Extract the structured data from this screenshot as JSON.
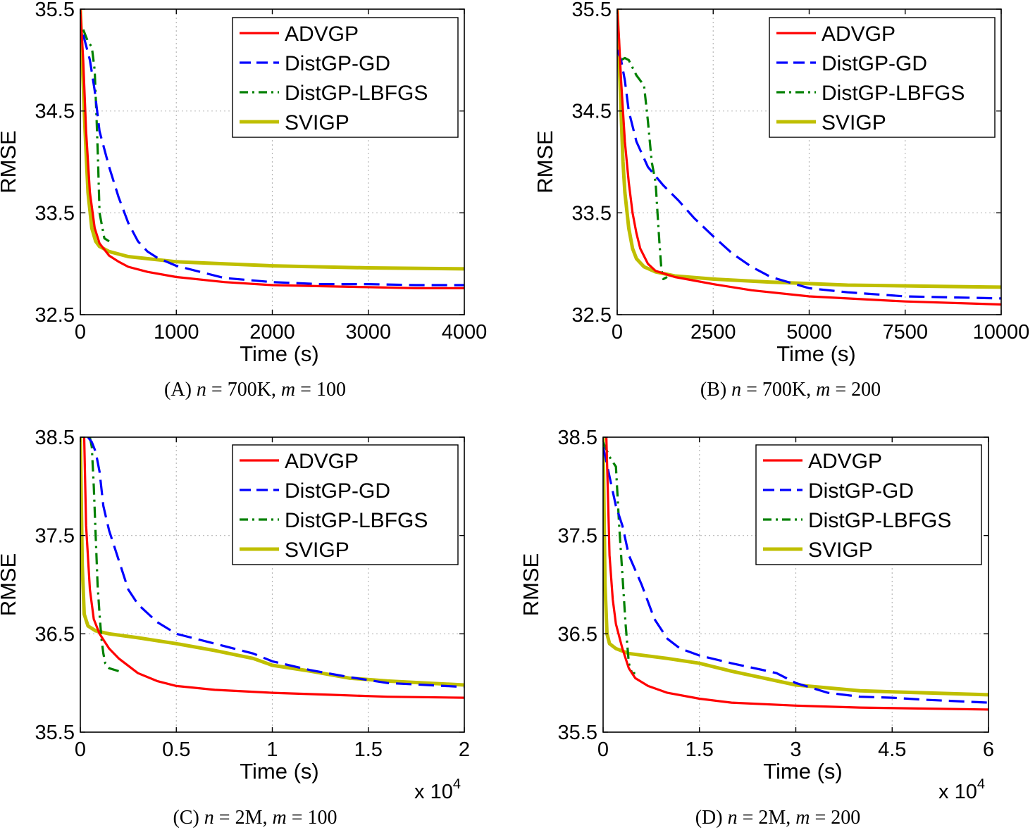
{
  "chart_data": [
    {
      "type": "line",
      "panel_label": "(A)",
      "caption_parts": [
        "n",
        "700K",
        "m",
        "100"
      ],
      "xlabel": "Time (s)",
      "ylabel": "RMSE",
      "xlim": [
        0,
        4000
      ],
      "ylim": [
        32.5,
        35.5
      ],
      "xticks": [
        0,
        1000,
        2000,
        3000,
        4000
      ],
      "xtick_labels": [
        "0",
        "1000",
        "2000",
        "3000",
        "4000"
      ],
      "yticks": [
        32.5,
        33.5,
        34.5,
        35.5
      ],
      "ytick_labels": [
        "32.5",
        "33.5",
        "34.5",
        "35.5"
      ],
      "x_multiplier": "",
      "grid": true,
      "legend_position": "top-right",
      "series": [
        {
          "name": "ADVGP",
          "style": "solid",
          "x": [
            0,
            30,
            60,
            100,
            150,
            200,
            300,
            400,
            500,
            700,
            1000,
            1500,
            2000,
            2500,
            3000,
            3500,
            4000
          ],
          "y": [
            35.5,
            35.0,
            34.3,
            33.7,
            33.35,
            33.2,
            33.08,
            33.02,
            32.97,
            32.92,
            32.87,
            32.82,
            32.79,
            32.78,
            32.77,
            32.76,
            32.76
          ]
        },
        {
          "name": "DistGP-GD",
          "style": "dashed",
          "x": [
            30,
            100,
            150,
            200,
            300,
            400,
            500,
            600,
            700,
            800,
            1000,
            1500,
            2000,
            2500,
            3000,
            3500,
            4000
          ],
          "y": [
            35.25,
            35.0,
            34.7,
            34.3,
            33.95,
            33.65,
            33.4,
            33.22,
            33.12,
            33.06,
            32.98,
            32.86,
            32.82,
            32.8,
            32.8,
            32.79,
            32.79
          ]
        },
        {
          "name": "DistGP-LBFGS",
          "style": "dashdot",
          "x": [
            30,
            80,
            120,
            150,
            170,
            185,
            200,
            250,
            300
          ],
          "y": [
            35.3,
            35.18,
            35.13,
            34.9,
            34.4,
            34.0,
            33.5,
            33.25,
            33.22
          ]
        },
        {
          "name": "SVIGP",
          "style": "solid",
          "x": [
            0,
            20,
            50,
            80,
            120,
            160,
            200,
            300,
            500,
            1000,
            1500,
            2000,
            3000,
            4000
          ],
          "y": [
            35.5,
            35.0,
            34.3,
            33.7,
            33.35,
            33.22,
            33.17,
            33.12,
            33.07,
            33.02,
            33.0,
            32.98,
            32.96,
            32.95
          ]
        }
      ]
    },
    {
      "type": "line",
      "panel_label": "(B)",
      "caption_parts": [
        "n",
        "700K",
        "m",
        "200"
      ],
      "xlabel": "Time (s)",
      "ylabel": "RMSE",
      "xlim": [
        0,
        10000
      ],
      "ylim": [
        32.5,
        35.5
      ],
      "xticks": [
        0,
        2500,
        5000,
        7500,
        10000
      ],
      "xtick_labels": [
        "0",
        "2500",
        "5000",
        "7500",
        "10000"
      ],
      "yticks": [
        32.5,
        33.5,
        34.5,
        35.5
      ],
      "ytick_labels": [
        "32.5",
        "33.5",
        "34.5",
        "35.5"
      ],
      "x_multiplier": "",
      "grid": true,
      "legend_position": "top-right",
      "series": [
        {
          "name": "ADVGP",
          "style": "solid",
          "x": [
            0,
            50,
            100,
            200,
            300,
            400,
            500,
            600,
            800,
            1000,
            1500,
            2500,
            3500,
            5000,
            7500,
            10000
          ],
          "y": [
            35.5,
            35.2,
            34.8,
            34.2,
            33.8,
            33.5,
            33.3,
            33.15,
            33.0,
            32.93,
            32.87,
            32.8,
            32.74,
            32.68,
            32.63,
            32.6
          ]
        },
        {
          "name": "DistGP-GD",
          "style": "dashed",
          "x": [
            0,
            100,
            200,
            300,
            500,
            800,
            1200,
            1600,
            2000,
            2500,
            3000,
            3500,
            4000,
            5000,
            6000,
            7500,
            10000
          ],
          "y": [
            35.1,
            35.0,
            34.8,
            34.5,
            34.2,
            33.95,
            33.77,
            33.62,
            33.45,
            33.27,
            33.1,
            32.97,
            32.87,
            32.76,
            32.72,
            32.68,
            32.66
          ]
        },
        {
          "name": "DistGP-LBFGS",
          "style": "dashdot",
          "x": [
            100,
            200,
            300,
            500,
            700,
            800,
            900,
            1000,
            1050,
            1100,
            1150,
            1200,
            1300
          ],
          "y": [
            35.0,
            35.02,
            35.0,
            34.85,
            34.75,
            34.4,
            34.0,
            33.8,
            33.5,
            33.2,
            32.95,
            32.85,
            32.87
          ]
        },
        {
          "name": "SVIGP",
          "style": "solid",
          "x": [
            0,
            50,
            100,
            150,
            200,
            300,
            400,
            500,
            700,
            1000,
            1500,
            2500,
            4000,
            6000,
            8000,
            10000
          ],
          "y": [
            35.5,
            35.0,
            34.5,
            34.0,
            33.7,
            33.35,
            33.15,
            33.05,
            32.97,
            32.92,
            32.88,
            32.85,
            32.82,
            32.79,
            32.78,
            32.77
          ]
        }
      ]
    },
    {
      "type": "line",
      "panel_label": "(C)",
      "caption_parts": [
        "n",
        "2M",
        "m",
        "100"
      ],
      "xlabel": "Time (s)",
      "ylabel": "RMSE",
      "xlim": [
        0,
        2
      ],
      "ylim": [
        35.5,
        38.5
      ],
      "xticks": [
        0,
        0.5,
        1,
        1.5,
        2
      ],
      "xtick_labels": [
        "0",
        "0.5",
        "1",
        "1.5",
        "2"
      ],
      "yticks": [
        35.5,
        36.5,
        37.5,
        38.5
      ],
      "ytick_labels": [
        "35.5",
        "36.5",
        "37.5",
        "38.5"
      ],
      "x_multiplier": "x 10",
      "x_multiplier_exp": "4",
      "grid": true,
      "legend_position": "top-right",
      "series": [
        {
          "name": "ADVGP",
          "style": "solid",
          "x": [
            0.02,
            0.03,
            0.05,
            0.07,
            0.1,
            0.15,
            0.2,
            0.3,
            0.4,
            0.5,
            0.7,
            1.0,
            1.3,
            1.6,
            2.0
          ],
          "y": [
            38.5,
            37.6,
            36.95,
            36.65,
            36.5,
            36.35,
            36.25,
            36.1,
            36.02,
            35.97,
            35.93,
            35.9,
            35.88,
            35.86,
            35.85
          ]
        },
        {
          "name": "DistGP-GD",
          "style": "dashed",
          "x": [
            0.04,
            0.06,
            0.08,
            0.1,
            0.12,
            0.15,
            0.2,
            0.25,
            0.3,
            0.4,
            0.5,
            0.7,
            0.9,
            1.0,
            1.2,
            1.4,
            1.6,
            1.8,
            2.0
          ],
          "y": [
            38.5,
            38.45,
            38.35,
            38.15,
            37.8,
            37.55,
            37.25,
            36.95,
            36.8,
            36.62,
            36.5,
            36.4,
            36.3,
            36.22,
            36.13,
            36.06,
            36.0,
            35.98,
            35.96
          ]
        },
        {
          "name": "DistGP-LBFGS",
          "style": "dashdot",
          "x": [
            0.05,
            0.06,
            0.07,
            0.08,
            0.09,
            0.1,
            0.11,
            0.12,
            0.13,
            0.15,
            0.2
          ],
          "y": [
            38.5,
            38.4,
            38.0,
            37.5,
            37.0,
            36.7,
            36.45,
            36.3,
            36.2,
            36.15,
            36.12
          ]
        },
        {
          "name": "SVIGP",
          "style": "solid",
          "x": [
            0.0,
            0.01,
            0.02,
            0.04,
            0.08,
            0.15,
            0.3,
            0.5,
            0.7,
            0.9,
            1.0,
            1.2,
            1.4,
            1.6,
            1.8,
            2.0
          ],
          "y": [
            38.5,
            37.2,
            36.7,
            36.58,
            36.53,
            36.5,
            36.46,
            36.4,
            36.33,
            36.25,
            36.18,
            36.12,
            36.05,
            36.02,
            36.0,
            35.98
          ]
        }
      ]
    },
    {
      "type": "line",
      "panel_label": "(D)",
      "caption_parts": [
        "n",
        "2M",
        "m",
        "200"
      ],
      "xlabel": "Time (s)",
      "ylabel": "RMSE",
      "xlim": [
        0,
        6
      ],
      "ylim": [
        35.5,
        38.5
      ],
      "xticks": [
        0,
        1.5,
        3,
        4.5,
        6
      ],
      "xtick_labels": [
        "0",
        "1.5",
        "3",
        "4.5",
        "6"
      ],
      "yticks": [
        35.5,
        36.5,
        37.5,
        38.5
      ],
      "ytick_labels": [
        "35.5",
        "36.5",
        "37.5",
        "38.5"
      ],
      "x_multiplier": "x 10",
      "x_multiplier_exp": "4",
      "grid": true,
      "legend_position": "top-right",
      "series": [
        {
          "name": "ADVGP",
          "style": "solid",
          "x": [
            0.05,
            0.08,
            0.1,
            0.15,
            0.2,
            0.3,
            0.4,
            0.5,
            0.7,
            1.0,
            1.5,
            2.0,
            3.0,
            4.0,
            5.0,
            6.0
          ],
          "y": [
            38.5,
            37.8,
            37.3,
            36.85,
            36.6,
            36.35,
            36.15,
            36.05,
            35.97,
            35.9,
            35.84,
            35.8,
            35.77,
            35.75,
            35.74,
            35.73
          ]
        },
        {
          "name": "DistGP-GD",
          "style": "dashed",
          "x": [
            0.0,
            0.1,
            0.2,
            0.3,
            0.4,
            0.6,
            0.8,
            1.0,
            1.2,
            1.5,
            2.0,
            2.5,
            2.7,
            3.0,
            3.5,
            4.0,
            4.5,
            5.0,
            6.0
          ],
          "y": [
            38.4,
            38.1,
            37.8,
            37.6,
            37.3,
            37.0,
            36.65,
            36.45,
            36.35,
            36.28,
            36.2,
            36.13,
            36.1,
            36.0,
            35.9,
            35.86,
            35.85,
            35.83,
            35.8
          ]
        },
        {
          "name": "DistGP-LBFGS",
          "style": "dashdot",
          "x": [
            0.0,
            0.1,
            0.2,
            0.25,
            0.3,
            0.35,
            0.4,
            0.45,
            0.5
          ],
          "y": [
            38.45,
            38.3,
            38.2,
            37.6,
            37.1,
            36.6,
            36.2,
            36.1,
            36.1
          ]
        },
        {
          "name": "SVIGP",
          "style": "solid",
          "x": [
            0.0,
            0.03,
            0.06,
            0.1,
            0.2,
            0.4,
            1.0,
            1.5,
            2.0,
            2.5,
            3.0,
            3.5,
            4.0,
            5.0,
            6.0
          ],
          "y": [
            38.5,
            37.0,
            36.5,
            36.4,
            36.35,
            36.3,
            36.25,
            36.2,
            36.12,
            36.05,
            35.98,
            35.95,
            35.92,
            35.9,
            35.88
          ]
        }
      ]
    }
  ],
  "colors": {
    "ADVGP": "#ff0000",
    "DistGP-GD": "#0000ff",
    "DistGP-LBFGS": "#008000",
    "SVIGP": "#bfbf00"
  }
}
